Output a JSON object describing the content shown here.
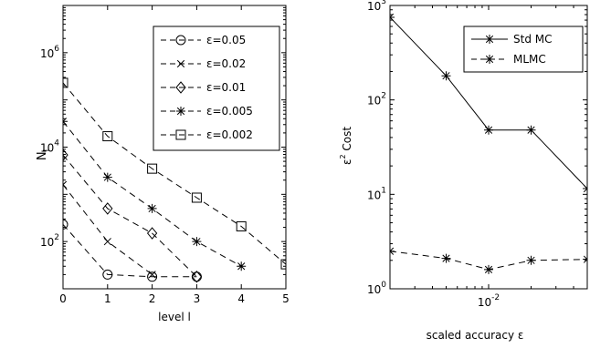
{
  "chart_data": [
    {
      "type": "line",
      "xlabel": "level l",
      "ylabel": "N",
      "ylabel_subscript": "l",
      "y_scale": "log",
      "xlim": [
        0,
        5
      ],
      "ylim": [
        10,
        10000000
      ],
      "x_ticks": [
        0,
        1,
        2,
        3,
        4,
        5
      ],
      "y_ticks": [
        {
          "value": 100,
          "base": "10",
          "exp": "2"
        },
        {
          "value": 10000,
          "base": "10",
          "exp": "4"
        },
        {
          "value": 1000000,
          "base": "10",
          "exp": "6"
        }
      ],
      "grid": false,
      "legend_position": "top-right",
      "series": [
        {
          "name": "ε=0.05",
          "marker": "circle",
          "line": "dashed",
          "x": [
            0,
            1,
            2,
            3
          ],
          "values": [
            230,
            20,
            18,
            18
          ]
        },
        {
          "name": "ε=0.02",
          "marker": "x",
          "line": "dashed",
          "x": [
            0,
            1,
            2
          ],
          "values": [
            1600,
            100,
            20
          ]
        },
        {
          "name": "ε=0.01",
          "marker": "diamond",
          "line": "dashed",
          "x": [
            0,
            1,
            2,
            3
          ],
          "values": [
            6800,
            500,
            150,
            18
          ]
        },
        {
          "name": "ε=0.005",
          "marker": "asterisk",
          "line": "dashed",
          "x": [
            0,
            1,
            2,
            3,
            4
          ],
          "values": [
            35000,
            2300,
            500,
            100,
            30
          ]
        },
        {
          "name": "ε=0.002",
          "marker": "square",
          "line": "dashed",
          "x": [
            0,
            1,
            2,
            3,
            4,
            5
          ],
          "values": [
            230000,
            17000,
            3500,
            850,
            210,
            33
          ]
        }
      ]
    },
    {
      "type": "line",
      "xlabel": "scaled accuracy ε",
      "ylabel": "ε",
      "ylabel_sup": "2",
      "ylabel_rest": " Cost",
      "x_scale": "log",
      "y_scale": "log",
      "xlim": [
        0.002,
        0.05
      ],
      "ylim": [
        1,
        1000
      ],
      "x_ticks": [
        {
          "value": 0.01,
          "base": "10",
          "exp": "-2"
        }
      ],
      "y_ticks": [
        {
          "value": 1,
          "base": "10",
          "exp": "0"
        },
        {
          "value": 10,
          "base": "10",
          "exp": "1"
        },
        {
          "value": 100,
          "base": "10",
          "exp": "2"
        },
        {
          "value": 1000,
          "base": "10",
          "exp": "3"
        }
      ],
      "grid": false,
      "legend_position": "top-right",
      "series": [
        {
          "name": "Std MC",
          "marker": "asterisk",
          "line": "solid",
          "x": [
            0.002,
            0.005,
            0.01,
            0.02,
            0.05
          ],
          "values": [
            750,
            180,
            48,
            48,
            11.5
          ]
        },
        {
          "name": "MLMC",
          "marker": "asterisk",
          "line": "dashed",
          "x": [
            0.002,
            0.005,
            0.01,
            0.02,
            0.05
          ],
          "values": [
            2.5,
            2.1,
            1.6,
            2.0,
            2.05
          ]
        }
      ]
    }
  ]
}
